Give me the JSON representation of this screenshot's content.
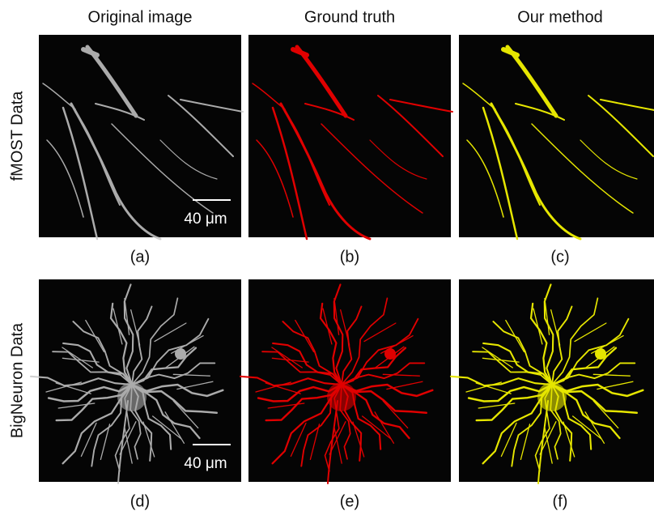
{
  "columns": [
    "Original image",
    "Ground truth",
    "Our method"
  ],
  "rows": [
    {
      "label": "fMOST Data",
      "panels": [
        "(a)",
        "(b)",
        "(c)"
      ],
      "scale_bar": "40 μm"
    },
    {
      "label": "BigNeuron Data",
      "panels": [
        "(d)",
        "(e)",
        "(f)"
      ],
      "scale_bar": "40 μm"
    }
  ]
}
